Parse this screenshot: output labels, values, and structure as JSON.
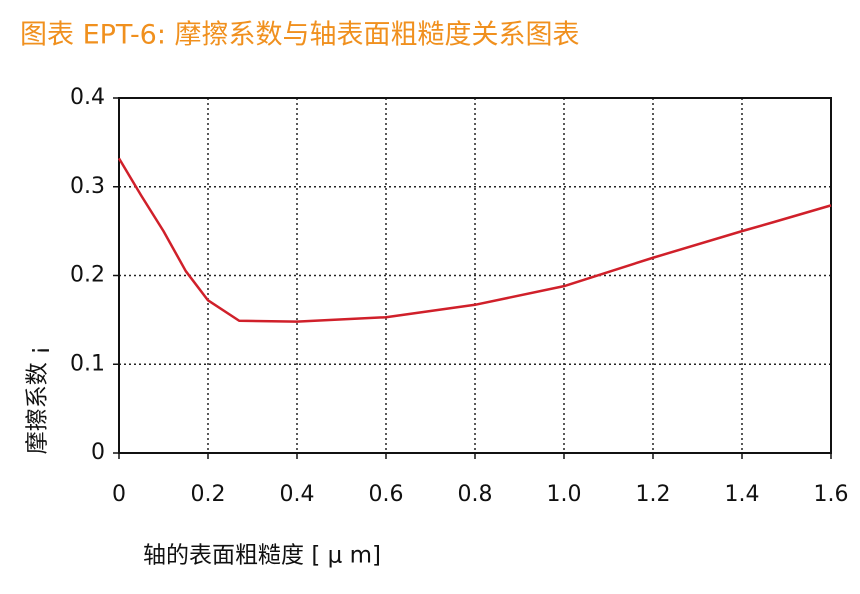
{
  "chart_data": {
    "type": "line",
    "title": "图表 EPT-6: 摩擦系数与轴表面粗糙度关系图表",
    "x_label": "轴的表面粗糙度 [ μ m]",
    "y_label": "摩擦系数 ¡",
    "x": [
      0,
      0.05,
      0.1,
      0.15,
      0.2,
      0.27,
      0.4,
      0.6,
      0.8,
      1.0,
      1.2,
      1.4,
      1.47,
      1.6
    ],
    "series": [
      {
        "name": "摩擦系数",
        "color": "#d0202a",
        "values": [
          0.332,
          0.29,
          0.25,
          0.205,
          0.172,
          0.149,
          0.148,
          0.153,
          0.167,
          0.188,
          0.22,
          0.25,
          0.26,
          0.279
        ]
      }
    ],
    "xlim": [
      0,
      1.6
    ],
    "ylim": [
      0,
      0.4
    ],
    "xticks": [
      0,
      0.2,
      0.4,
      0.6,
      0.8,
      {
        "value": 1,
        "label": "1.0"
      },
      1.2,
      1.4,
      1.6
    ],
    "yticks": [
      0,
      0.1,
      0.2,
      0.3,
      0.4
    ],
    "grid": true
  }
}
